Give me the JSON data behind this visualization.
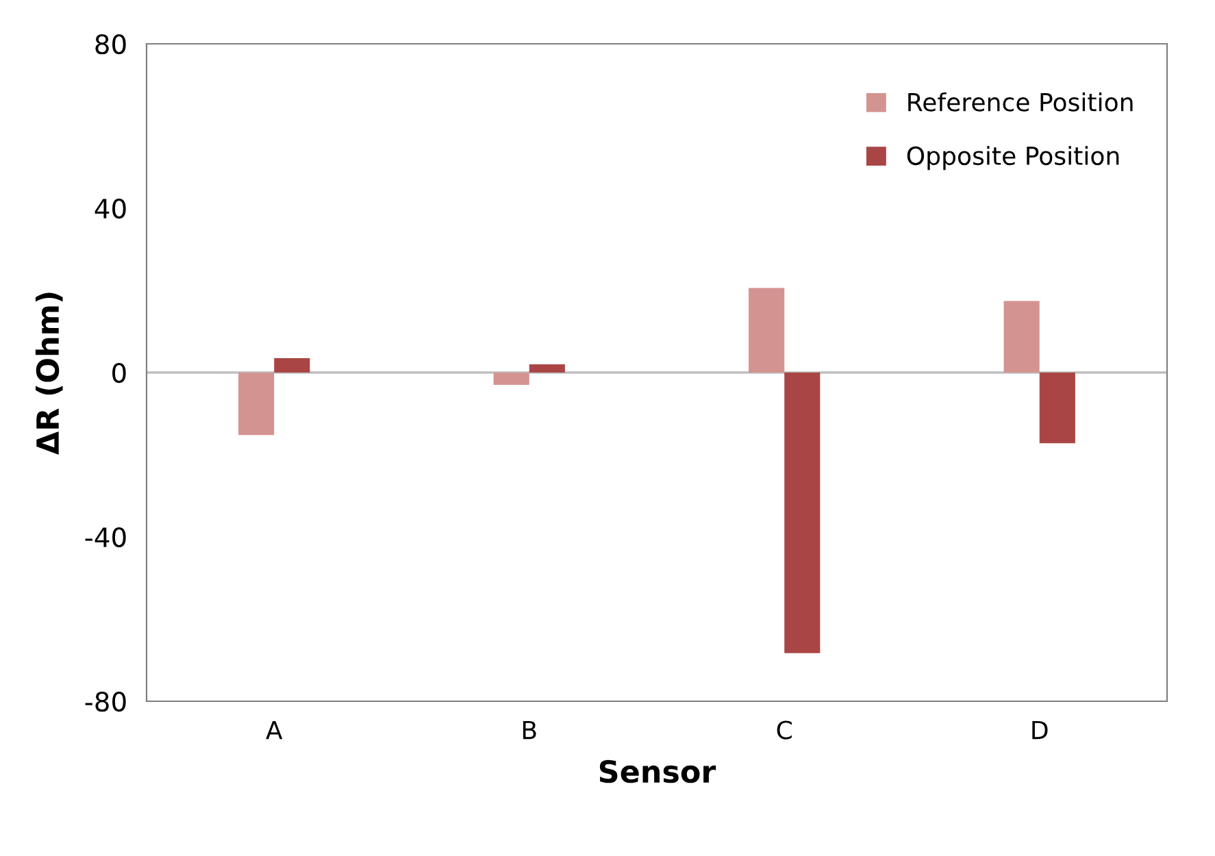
{
  "chart_data": {
    "type": "bar",
    "xlabel": "Sensor",
    "ylabel": "ΔR (Ohm)",
    "categories": [
      "A",
      "B",
      "C",
      "D"
    ],
    "series": [
      {
        "name": "Reference Position",
        "color": "#d39391",
        "values": [
          -15.2,
          -3,
          20.6,
          17.4
        ]
      },
      {
        "name": "Opposite Position",
        "color": "#a94645",
        "values": [
          3.5,
          2,
          -68.3,
          -17.2
        ]
      }
    ],
    "ylim": [
      -80,
      80
    ],
    "yticks": [
      -80,
      -40,
      0,
      40,
      80
    ],
    "ref_lines": [
      {
        "axis": "y",
        "value": 0,
        "color": "#bfbfbf"
      }
    ],
    "grid": false,
    "legend": "top right"
  }
}
